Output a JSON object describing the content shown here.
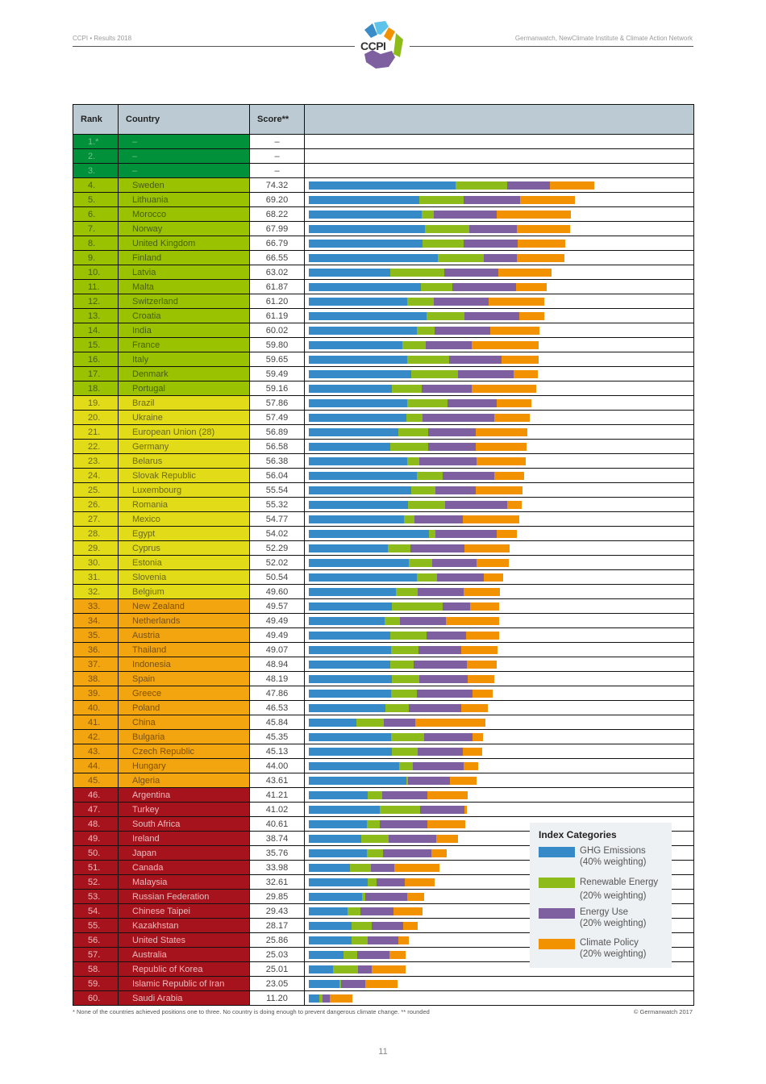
{
  "header": {
    "left": "CCPI • Results 2018",
    "right": "Germanwatch, NewClimate Institute & Climate Action Network",
    "logo_text": "CCPI"
  },
  "table": {
    "columns": [
      "Rank",
      "Country",
      "Score**",
      ""
    ]
  },
  "legend": {
    "title": "Index Categories",
    "items": [
      {
        "name": "GHG Emissions",
        "weight": "(40% weighting)",
        "color": "#368ac7"
      },
      {
        "name": "Renewable Energy",
        "weight": "(20% weighting)",
        "color": "#8cbb1a"
      },
      {
        "name": "Energy Use",
        "weight": "(20% weighting)",
        "color": "#7e5fa0"
      },
      {
        "name": "Climate Policy",
        "weight": "(20% weighting)",
        "color": "#f39200"
      }
    ]
  },
  "footer": {
    "footnote": "* None of the countries achieved positions one to three. No country is doing enough to prevent dangerous climate change.  ** rounded",
    "copyright": "© Germanwatch 2017",
    "page_number": "11"
  },
  "chart_data": {
    "type": "bar",
    "title": "CCPI Results 2018 — Climate Change Performance Index ranking",
    "orientation": "horizontal-stacked",
    "series_names": [
      "GHG Emissions",
      "Renewable Energy",
      "Energy Use",
      "Climate Policy"
    ],
    "series_colors": [
      "#368ac7",
      "#8cbb1a",
      "#7e5fa0",
      "#f39200"
    ],
    "note": "segments are in pixel-length units (bar scale approx. 4.8px per score point)",
    "rows": [
      {
        "rank": "1.*",
        "country": "–",
        "score": "–",
        "band": "green",
        "segments": []
      },
      {
        "rank": "2.",
        "country": "–",
        "score": "–",
        "band": "green",
        "segments": []
      },
      {
        "rank": "3.",
        "country": "–",
        "score": "–",
        "band": "green",
        "segments": []
      },
      {
        "rank": "4.",
        "country": "Sweden",
        "score": "74.32",
        "band": "lime",
        "segments": [
          182,
          64,
          53,
          55
        ]
      },
      {
        "rank": "5.",
        "country": "Lithuania",
        "score": "69.20",
        "band": "lime",
        "segments": [
          137,
          55,
          70,
          68
        ]
      },
      {
        "rank": "6.",
        "country": "Morocco",
        "score": "68.22",
        "band": "lime",
        "segments": [
          140,
          15,
          78,
          92
        ]
      },
      {
        "rank": "7.",
        "country": "Norway",
        "score": "67.99",
        "band": "lime",
        "segments": [
          144,
          55,
          59,
          66
        ]
      },
      {
        "rank": "8.",
        "country": "United Kingdom",
        "score": "66.79",
        "band": "lime",
        "segments": [
          141,
          51,
          67,
          59
        ]
      },
      {
        "rank": "9.",
        "country": "Finland",
        "score": "66.55",
        "band": "lime",
        "segments": [
          160,
          57,
          41,
          59
        ]
      },
      {
        "rank": "10.",
        "country": "Latvia",
        "score": "63.02",
        "band": "lime",
        "segments": [
          101,
          67,
          67,
          66
        ]
      },
      {
        "rank": "11.",
        "country": "Malta",
        "score": "61.87",
        "band": "lime",
        "segments": [
          139,
          39,
          79,
          38
        ]
      },
      {
        "rank": "12.",
        "country": "Switzerland",
        "score": "61.20",
        "band": "lime",
        "segments": [
          122,
          33,
          68,
          69
        ]
      },
      {
        "rank": "13.",
        "country": "Croatia",
        "score": "61.19",
        "band": "lime",
        "segments": [
          146,
          47,
          68,
          31
        ]
      },
      {
        "rank": "14.",
        "country": "India",
        "score": "60.02",
        "band": "lime",
        "segments": [
          134,
          22,
          69,
          61
        ]
      },
      {
        "rank": "15.",
        "country": "France",
        "score": "59.80",
        "band": "lime",
        "segments": [
          116,
          29,
          57,
          83
        ]
      },
      {
        "rank": "16.",
        "country": "Italy",
        "score": "59.65",
        "band": "lime",
        "segments": [
          122,
          52,
          65,
          46
        ]
      },
      {
        "rank": "17.",
        "country": "Denmark",
        "score": "59.49",
        "band": "lime",
        "segments": [
          127,
          58,
          69,
          30
        ]
      },
      {
        "rank": "18.",
        "country": "Portugal",
        "score": "59.16",
        "band": "lime",
        "segments": [
          103,
          37,
          62,
          80
        ]
      },
      {
        "rank": "19.",
        "country": "Brazil",
        "score": "57.86",
        "band": "yellow",
        "segments": [
          122,
          50,
          61,
          43
        ]
      },
      {
        "rank": "20.",
        "country": "Ukraine",
        "score": "57.49",
        "band": "yellow",
        "segments": [
          121,
          20,
          89,
          44
        ]
      },
      {
        "rank": "21.",
        "country": "European Union (28)",
        "score": "56.89",
        "band": "yellow",
        "segments": [
          111,
          37,
          59,
          64
        ]
      },
      {
        "rank": "22.",
        "country": "Germany",
        "score": "56.58",
        "band": "yellow",
        "segments": [
          101,
          47,
          59,
          63
        ]
      },
      {
        "rank": "23.",
        "country": "Belarus",
        "score": "56.38",
        "band": "yellow",
        "segments": [
          122,
          15,
          71,
          61
        ]
      },
      {
        "rank": "24.",
        "country": "Slovak Republic",
        "score": "56.04",
        "band": "yellow",
        "segments": [
          134,
          32,
          64,
          37
        ]
      },
      {
        "rank": "25.",
        "country": "Luxembourg",
        "score": "55.54",
        "band": "yellow",
        "segments": [
          127,
          30,
          50,
          58
        ]
      },
      {
        "rank": "26.",
        "country": "Romania",
        "score": "55.32",
        "band": "yellow",
        "segments": [
          123,
          46,
          77,
          18
        ]
      },
      {
        "rank": "27.",
        "country": "Mexico",
        "score": "54.77",
        "band": "yellow",
        "segments": [
          118,
          13,
          60,
          70
        ]
      },
      {
        "rank": "28.",
        "country": "Egypt",
        "score": "54.02",
        "band": "yellow",
        "segments": [
          149,
          8,
          76,
          25
        ]
      },
      {
        "rank": "29.",
        "country": "Cyprus",
        "score": "52.29",
        "band": "yellow",
        "segments": [
          98,
          28,
          67,
          56
        ]
      },
      {
        "rank": "30.",
        "country": "Estonia",
        "score": "52.02",
        "band": "yellow",
        "segments": [
          124,
          29,
          55,
          40
        ]
      },
      {
        "rank": "31.",
        "country": "Slovenia",
        "score": "50.54",
        "band": "yellow",
        "segments": [
          134,
          25,
          58,
          24
        ]
      },
      {
        "rank": "32.",
        "country": "Belgium",
        "score": "49.60",
        "band": "yellow",
        "segments": [
          108,
          27,
          57,
          45
        ]
      },
      {
        "rank": "33.",
        "country": "New Zealand",
        "score": "49.57",
        "band": "orange",
        "segments": [
          103,
          63,
          34,
          36
        ]
      },
      {
        "rank": "34.",
        "country": "Netherlands",
        "score": "49.49",
        "band": "orange",
        "segments": [
          94,
          19,
          57,
          66
        ]
      },
      {
        "rank": "35.",
        "country": "Austria",
        "score": "49.49",
        "band": "orange",
        "segments": [
          101,
          45,
          49,
          41
        ]
      },
      {
        "rank": "36.",
        "country": "Thailand",
        "score": "49.07",
        "band": "orange",
        "segments": [
          102,
          34,
          53,
          45
        ]
      },
      {
        "rank": "37.",
        "country": "Indonesia",
        "score": "48.94",
        "band": "orange",
        "segments": [
          101,
          29,
          66,
          37
        ]
      },
      {
        "rank": "38.",
        "country": "Spain",
        "score": "48.19",
        "band": "orange",
        "segments": [
          103,
          34,
          60,
          33
        ]
      },
      {
        "rank": "39.",
        "country": "Greece",
        "score": "47.86",
        "band": "orange",
        "segments": [
          102,
          32,
          69,
          25
        ]
      },
      {
        "rank": "40.",
        "country": "Poland",
        "score": "46.53",
        "band": "orange",
        "segments": [
          95,
          29,
          65,
          33
        ]
      },
      {
        "rank": "41.",
        "country": "China",
        "score": "45.84",
        "band": "orange",
        "segments": [
          59,
          34,
          39,
          87
        ]
      },
      {
        "rank": "42.",
        "country": "Bulgaria",
        "score": "45.35",
        "band": "orange",
        "segments": [
          102,
          41,
          60,
          13
        ]
      },
      {
        "rank": "43.",
        "country": "Czech Republic",
        "score": "45.13",
        "band": "orange",
        "segments": [
          103,
          32,
          56,
          24
        ]
      },
      {
        "rank": "44.",
        "country": "Hungary",
        "score": "44.00",
        "band": "orange",
        "segments": [
          112,
          17,
          63,
          18
        ]
      },
      {
        "rank": "45.",
        "country": "Algeria",
        "score": "43.61",
        "band": "orange",
        "segments": [
          121,
          2,
          52,
          33
        ]
      },
      {
        "rank": "46.",
        "country": "Argentina",
        "score": "41.21",
        "band": "red",
        "segments": [
          73,
          18,
          56,
          50
        ]
      },
      {
        "rank": "47.",
        "country": "Turkey",
        "score": "41.02",
        "band": "red",
        "segments": [
          88,
          50,
          55,
          3
        ]
      },
      {
        "rank": "48.",
        "country": "South Africa",
        "score": "40.61",
        "band": "red",
        "segments": [
          72,
          16,
          59,
          47
        ]
      },
      {
        "rank": "49.",
        "country": "Ireland",
        "score": "38.74",
        "band": "red",
        "segments": [
          65,
          34,
          59,
          27
        ]
      },
      {
        "rank": "50.",
        "country": "Japan",
        "score": "35.76",
        "band": "red",
        "segments": [
          72,
          20,
          60,
          19
        ]
      },
      {
        "rank": "51.",
        "country": "Canada",
        "score": "33.98",
        "band": "red",
        "segments": [
          51,
          26,
          29,
          56
        ]
      },
      {
        "rank": "52.",
        "country": "Malaysia",
        "score": "32.61",
        "band": "red",
        "segments": [
          73,
          11,
          35,
          37
        ]
      },
      {
        "rank": "53.",
        "country": "Russian Federation",
        "score": "29.85",
        "band": "red",
        "segments": [
          66,
          4,
          52,
          21
        ]
      },
      {
        "rank": "54.",
        "country": "Chinese Taipei",
        "score": "29.43",
        "band": "red",
        "segments": [
          48,
          16,
          41,
          36
        ]
      },
      {
        "rank": "55.",
        "country": "Kazakhstan",
        "score": "28.17",
        "band": "red",
        "segments": [
          53,
          25,
          39,
          18
        ]
      },
      {
        "rank": "56.",
        "country": "United States",
        "score": "25.86",
        "band": "red",
        "segments": [
          53,
          20,
          38,
          13
        ]
      },
      {
        "rank": "57.",
        "country": "Australia",
        "score": "25.03",
        "band": "red",
        "segments": [
          43,
          17,
          40,
          20
        ]
      },
      {
        "rank": "58.",
        "country": "Republic of Korea",
        "score": "25.01",
        "band": "red",
        "segments": [
          30,
          31,
          17,
          42
        ]
      },
      {
        "rank": "59.",
        "country": "Islamic Republic of Iran",
        "score": "23.05",
        "band": "red",
        "segments": [
          38,
          2,
          30,
          40
        ]
      },
      {
        "rank": "60.",
        "country": "Saudi Arabia",
        "score": "11.20",
        "band": "red",
        "segments": [
          13,
          4,
          9,
          28
        ]
      }
    ]
  }
}
